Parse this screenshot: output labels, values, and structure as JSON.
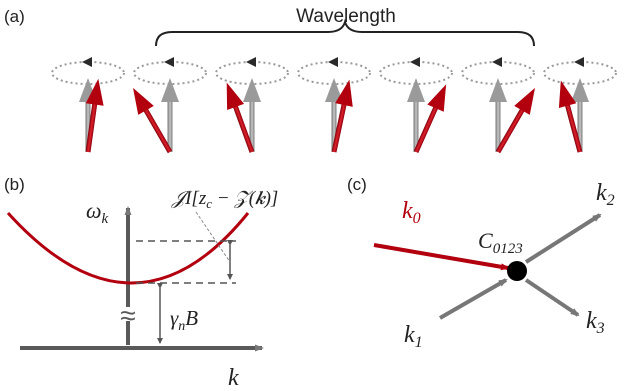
{
  "panel_a": {
    "label": "(a)",
    "brace_label": "Wavelength",
    "spins": [
      {
        "red_tilt_deg": 8
      },
      {
        "red_tilt_deg": -30
      },
      {
        "red_tilt_deg": -20
      },
      {
        "red_tilt_deg": 12
      },
      {
        "red_tilt_deg": 24
      },
      {
        "red_tilt_deg": 30
      },
      {
        "red_tilt_deg": -15
      }
    ]
  },
  "panel_b": {
    "label": "(b)",
    "y_axis_label": "ω",
    "y_axis_sub": "k",
    "x_axis_label": "k",
    "gap_label_main": "γ",
    "gap_label_sub": "n",
    "gap_label_tail": "B",
    "shift_label": "𝒥I[z",
    "shift_label_sub": "c",
    "shift_label_tail": " − 𝒵(𝒌)]",
    "break_symbol": "≈"
  },
  "panel_c": {
    "label": "(c)",
    "vertex_label": "C",
    "vertex_sub": "0123",
    "k0_label": "k",
    "k0_sub": "0",
    "k1_label": "k",
    "k1_sub": "1",
    "k2_label": "k",
    "k2_sub": "2",
    "k3_label": "k",
    "k3_sub": "3"
  },
  "colors": {
    "red": "#b3000f",
    "gray": "#8c8c8c",
    "dark_gray": "#555555",
    "axis": "#5a5a5a"
  }
}
